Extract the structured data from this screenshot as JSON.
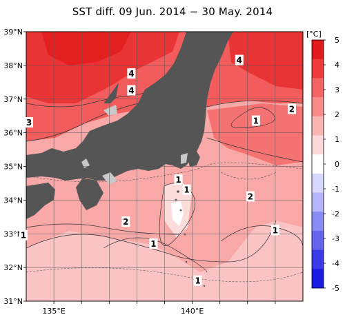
{
  "title": "SST diff. 09 Jun. 2014 − 30 May. 2014",
  "colorbar": {
    "unit": "[°C]",
    "ticks": [
      "5",
      "4",
      "3",
      "2",
      "1",
      "0",
      "-1",
      "-2",
      "-3",
      "-4",
      "-5"
    ],
    "colors": [
      "#e31a1c",
      "#ef3b3b",
      "#f46464",
      "#f88a8a",
      "#fbb4b4",
      "#fdd8d8",
      "#ffffff",
      "#d8d8ff",
      "#b4b4fb",
      "#8a8af4",
      "#6464ef",
      "#3b3bea",
      "#1a1ae3"
    ]
  },
  "axes": {
    "lat_labels": [
      "39°N",
      "38°N",
      "37°N",
      "36°N",
      "35°N",
      "34°N",
      "33°N",
      "32°N",
      "31°N"
    ],
    "lon_labels": [
      "135°E",
      "140°E"
    ]
  },
  "contour_labels": [
    {
      "text": "4",
      "lon": 137.8,
      "lat": 37.75
    },
    {
      "text": "4",
      "lon": 137.8,
      "lat": 37.25
    },
    {
      "text": "4",
      "lon": 141.7,
      "lat": 38.15
    },
    {
      "text": "3",
      "lon": 134.1,
      "lat": 36.3
    },
    {
      "text": "2",
      "lon": 143.6,
      "lat": 36.7
    },
    {
      "text": "1",
      "lon": 142.3,
      "lat": 36.35
    },
    {
      "text": "1",
      "lon": 139.5,
      "lat": 34.6
    },
    {
      "text": "1",
      "lon": 139.8,
      "lat": 34.3
    },
    {
      "text": "2",
      "lon": 142.1,
      "lat": 34.1
    },
    {
      "text": "2",
      "lon": 137.6,
      "lat": 33.35
    },
    {
      "text": "1",
      "lon": 133.9,
      "lat": 32.95
    },
    {
      "text": "1",
      "lon": 138.6,
      "lat": 32.7
    },
    {
      "text": "1",
      "lon": 143.0,
      "lat": 33.1
    },
    {
      "text": "1",
      "lon": 140.2,
      "lat": 31.6
    }
  ]
}
